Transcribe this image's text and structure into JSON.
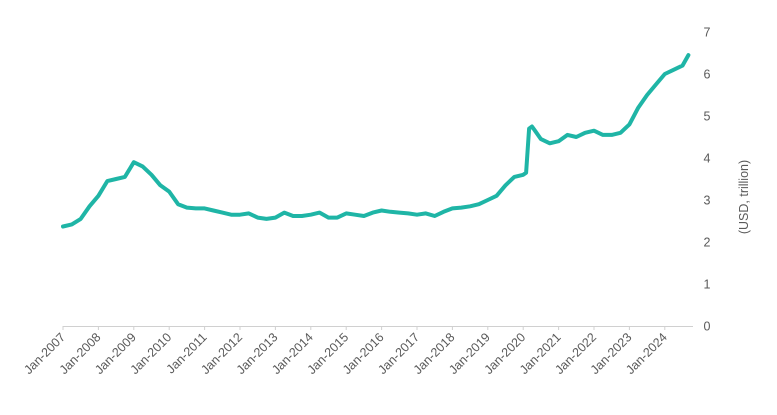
{
  "chart_data": {
    "type": "line",
    "title": "",
    "xlabel": "",
    "ylabel": "(USD, trillion)",
    "y_axis_side": "right",
    "ylim": [
      0,
      7
    ],
    "y_ticks": [
      "0",
      "1",
      "2",
      "3",
      "4",
      "5",
      "6",
      "7"
    ],
    "x_ticks": [
      "Jan-2007",
      "Jan-2008",
      "Jan-2009",
      "Jan-2010",
      "Jan-2011",
      "Jan-2012",
      "Jan-2013",
      "Jan-2014",
      "Jan-2015",
      "Jan-2016",
      "Jan-2017",
      "Jan-2018",
      "Jan-2019",
      "Jan-2020",
      "Jan-2021",
      "Jan-2022",
      "Jan-2023",
      "Jan-2024"
    ],
    "grid": false,
    "line_color": "#1fb5a6",
    "axis_color": "#d0d0d0",
    "series": [
      {
        "x": [
          "2007-01",
          "2007-04",
          "2007-07",
          "2007-10",
          "2008-01",
          "2008-04",
          "2008-07",
          "2008-10",
          "2009-01",
          "2009-04",
          "2009-07",
          "2009-10",
          "2010-01",
          "2010-04",
          "2010-07",
          "2010-10",
          "2011-01",
          "2011-04",
          "2011-07",
          "2011-10",
          "2012-01",
          "2012-04",
          "2012-07",
          "2012-10",
          "2013-01",
          "2013-04",
          "2013-07",
          "2013-10",
          "2014-01",
          "2014-04",
          "2014-07",
          "2014-10",
          "2015-01",
          "2015-04",
          "2015-07",
          "2015-10",
          "2016-01",
          "2016-04",
          "2016-07",
          "2016-10",
          "2017-01",
          "2017-04",
          "2017-07",
          "2017-10",
          "2018-01",
          "2018-04",
          "2018-07",
          "2018-10",
          "2019-01",
          "2019-04",
          "2019-07",
          "2019-10",
          "2020-01",
          "2020-02",
          "2020-03",
          "2020-04",
          "2020-05",
          "2020-07",
          "2020-10",
          "2021-01",
          "2021-04",
          "2021-07",
          "2021-10",
          "2022-01",
          "2022-04",
          "2022-07",
          "2022-10",
          "2023-01",
          "2023-04",
          "2023-07",
          "2023-10",
          "2024-01",
          "2024-04",
          "2024-07",
          "2024-09"
        ],
        "values": [
          2.37,
          2.42,
          2.55,
          2.85,
          3.1,
          3.45,
          3.5,
          3.55,
          3.9,
          3.8,
          3.6,
          3.35,
          3.2,
          2.9,
          2.82,
          2.8,
          2.8,
          2.75,
          2.7,
          2.65,
          2.65,
          2.68,
          2.58,
          2.55,
          2.58,
          2.7,
          2.62,
          2.62,
          2.65,
          2.7,
          2.58,
          2.58,
          2.68,
          2.65,
          2.62,
          2.7,
          2.75,
          2.72,
          2.7,
          2.68,
          2.65,
          2.68,
          2.62,
          2.72,
          2.8,
          2.82,
          2.85,
          2.9,
          3.0,
          3.1,
          3.35,
          3.55,
          3.6,
          3.65,
          4.7,
          4.75,
          4.65,
          4.45,
          4.35,
          4.4,
          4.55,
          4.5,
          4.6,
          4.65,
          4.55,
          4.55,
          4.6,
          4.8,
          5.2,
          5.5,
          5.75,
          6.0,
          6.1,
          6.2,
          6.45
        ]
      }
    ]
  }
}
